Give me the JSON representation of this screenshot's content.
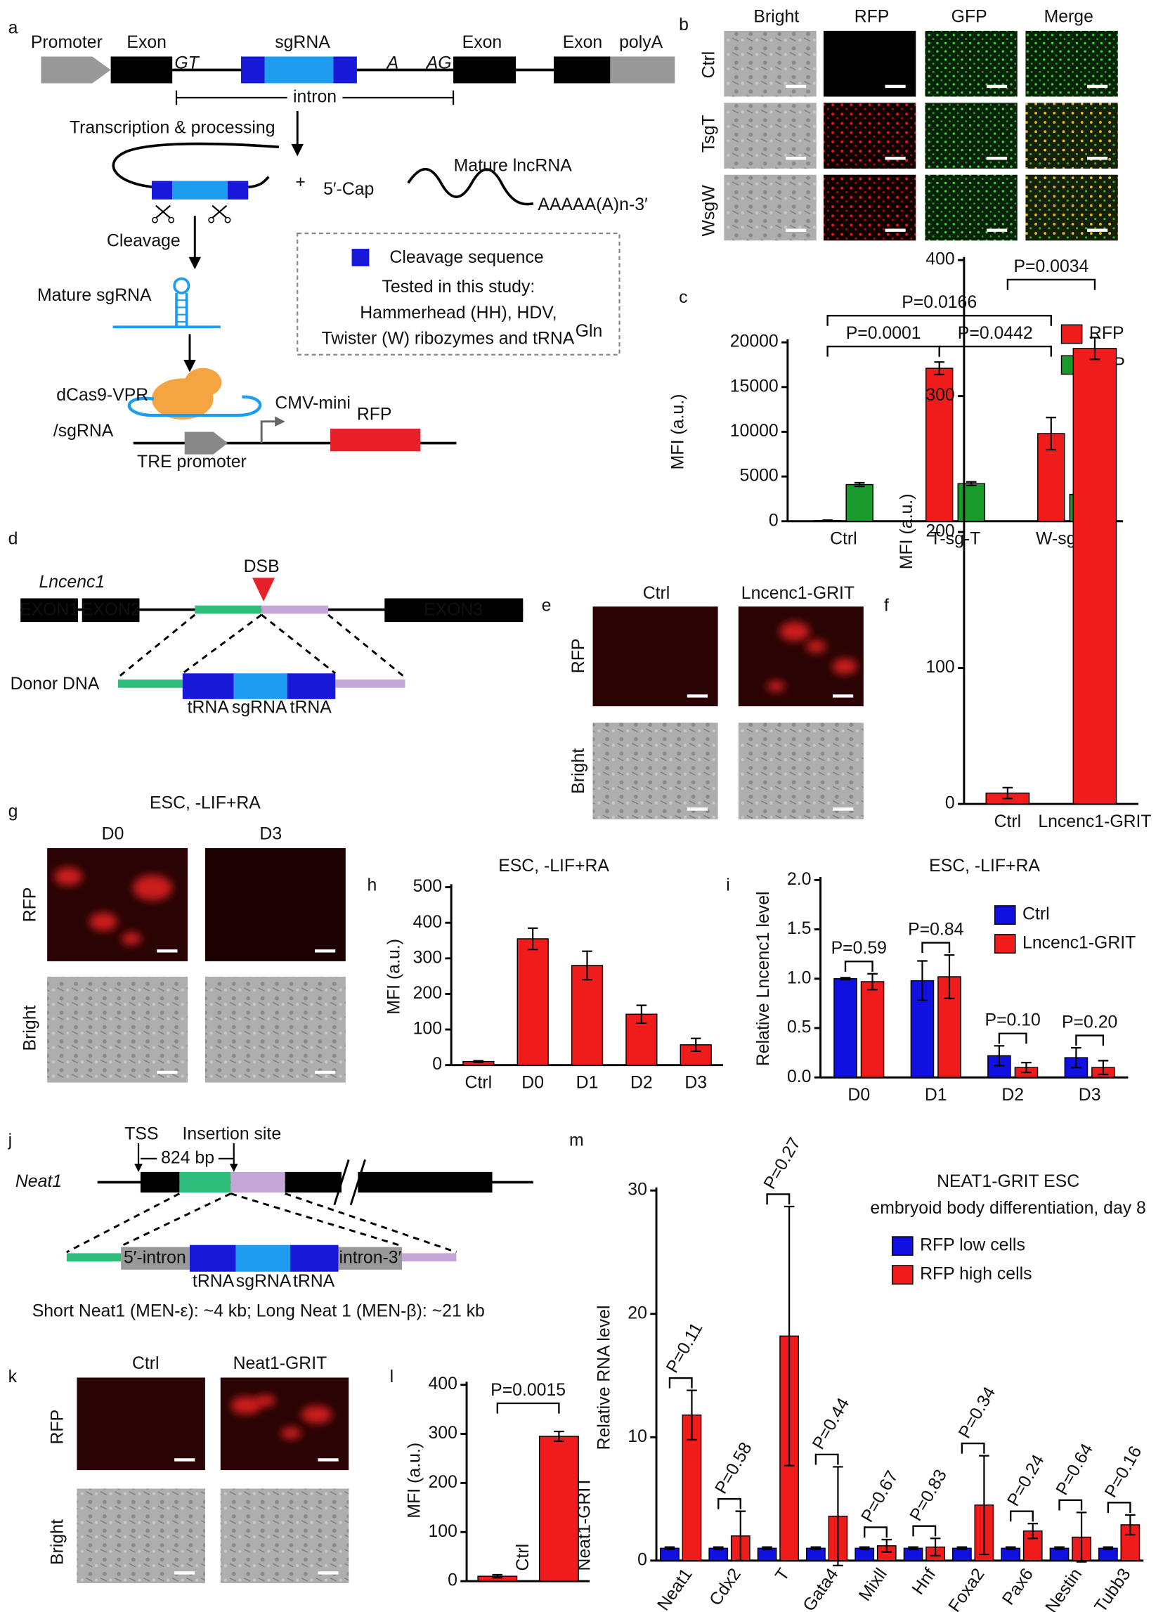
{
  "panel_labels": [
    "a",
    "b",
    "c",
    "d",
    "e",
    "f",
    "g",
    "h",
    "i",
    "j",
    "k",
    "l",
    "m"
  ],
  "panel_a": {
    "promoter": "Promoter",
    "exon1": "Exon",
    "sgrna": "sgRNA",
    "exon2": "Exon",
    "exon3": "Exon",
    "polya": "polyA",
    "gt": "GT",
    "a": "A",
    "ag": "AG",
    "intron": "intron",
    "transcription": "Transcription & processing",
    "plus": "+",
    "cap": "5′-Cap",
    "mature_lncrna": "Mature lncRNA",
    "polya_tail": "AAAAA(A)n-3′",
    "cleavage": "Cleavage",
    "mature_sgrna": "Mature sgRNA",
    "legend_cleavage": "Cleavage sequence",
    "tested": "Tested in this study:",
    "tested_2": "Hammerhead (HH), HDV,",
    "tested_3": "Twister (W) ribozymes and tRNA",
    "tested_sup": "Gln",
    "dcas9": "dCas9-VPR",
    "sgrna_label": "/sgRNA",
    "cmv": "CMV-mini",
    "rfp": "RFP",
    "tre": "TRE promoter"
  },
  "panel_b": {
    "columns": [
      "Bright",
      "RFP",
      "GFP",
      "Merge"
    ],
    "rows": [
      "Ctrl",
      "TsgT",
      "WsgW"
    ]
  },
  "panel_d": {
    "gene": "Lncenc1",
    "exons": [
      "EXON1",
      "EXON2",
      "EXON3"
    ],
    "dsb": "DSB",
    "donor": "Donor DNA",
    "parts": [
      "tRNA",
      "sgRNA",
      "tRNA"
    ]
  },
  "panel_e": {
    "columns": [
      "Ctrl",
      "Lncenc1-GRIT"
    ],
    "rows": [
      "RFP",
      "Bright"
    ]
  },
  "panel_g": {
    "title": "ESC, -LIF+RA",
    "columns": [
      "D0",
      "D3"
    ],
    "rows": [
      "RFP",
      "Bright"
    ]
  },
  "panel_j": {
    "tss": "TSS",
    "insertion": "Insertion site",
    "distance": "824 bp",
    "gene": "Neat1",
    "parts": [
      "5′-intron",
      "tRNA",
      "sgRNA",
      "tRNA",
      "intron-3′"
    ],
    "note": "Short Neat1 (MEN-ε): ~4 kb; Long Neat 1 (MEN-β): ~21 kb"
  },
  "panel_k": {
    "columns": [
      "Ctrl",
      "Neat1-GRIT"
    ],
    "rows": [
      "RFP",
      "Bright"
    ]
  },
  "chart_data": [
    {
      "type": "bar",
      "ylabel": "MFI (a.u.)",
      "categories": [
        "Ctrl",
        "T-sg-T",
        "W-sg-W"
      ],
      "series": [
        {
          "name": "RFP",
          "color": "#f01c1c",
          "values": [
            80,
            17100,
            9800
          ],
          "errors": [
            40,
            700,
            1800
          ]
        },
        {
          "name": "GFP",
          "color": "#1a9a2a",
          "values": [
            4100,
            4200,
            3000
          ],
          "errors": [
            200,
            200,
            300
          ]
        }
      ],
      "ylim": [
        0,
        20000
      ],
      "yticks": [
        0,
        5000,
        10000,
        15000,
        20000
      ],
      "annotations": [
        "P=0.0166",
        "P=0.0001",
        "P=0.0442"
      ]
    },
    {
      "type": "bar",
      "ylabel": "MFI (a.u.)",
      "categories": [
        "Ctrl",
        "Lncenc1-GRIT"
      ],
      "values": [
        8,
        335
      ],
      "errors": [
        4,
        8
      ],
      "color": "#f01c1c",
      "ylim": [
        0,
        400
      ],
      "yticks": [
        0,
        100,
        200,
        300,
        400
      ],
      "annotations": [
        "P=0.0034"
      ]
    },
    {
      "type": "bar",
      "title": "ESC, -LIF+RA",
      "ylabel": "MFI (a.u.)",
      "categories": [
        "Ctrl",
        "D0",
        "D1",
        "D2",
        "D3"
      ],
      "values": [
        10,
        355,
        280,
        143,
        57
      ],
      "errors": [
        2,
        30,
        40,
        25,
        18
      ],
      "color": "#f01c1c",
      "ylim": [
        0,
        500
      ],
      "yticks": [
        0,
        100,
        200,
        300,
        400,
        500
      ]
    },
    {
      "type": "bar",
      "title": "ESC, -LIF+RA",
      "ylabel": "Relative Lncenc1 level",
      "categories": [
        "D0",
        "D1",
        "D2",
        "D3"
      ],
      "series": [
        {
          "name": "Ctrl",
          "color": "#1010e0",
          "values": [
            1.0,
            0.98,
            0.22,
            0.2
          ],
          "errors": [
            0.01,
            0.2,
            0.1,
            0.1
          ]
        },
        {
          "name": "Lncenc1-GRIT",
          "color": "#f01c1c",
          "values": [
            0.97,
            1.02,
            0.1,
            0.1
          ],
          "errors": [
            0.08,
            0.22,
            0.05,
            0.07
          ]
        }
      ],
      "ylim": [
        0,
        2
      ],
      "yticks": [
        {
          "value": 0,
          "label": "0.0"
        },
        0.5,
        {
          "value": 1,
          "label": "1.0"
        },
        1.5,
        {
          "value": 2,
          "label": "2.0"
        }
      ],
      "annotations": [
        "P=0.59",
        "P=0.84",
        "P=0.10",
        "P=0.20"
      ]
    },
    {
      "type": "bar",
      "ylabel": "MFI (a.u.)",
      "categories": [
        "Ctrl",
        "Neat1-GRIT"
      ],
      "values": [
        10,
        295
      ],
      "errors": [
        3,
        10
      ],
      "color": "#f01c1c",
      "ylim": [
        0,
        400
      ],
      "yticks": [
        0,
        100,
        200,
        300,
        400
      ],
      "annotations": [
        "P=0.0015"
      ]
    },
    {
      "type": "bar",
      "title": [
        "NEAT1-GRIT ESC",
        "embryoid body differentiation, day 8"
      ],
      "ylabel": "Relative RNA level",
      "categories": [
        "Neat1",
        "Cdx2",
        "T",
        "Gata4",
        "Mixll",
        "Hnf",
        "Foxa2",
        "Pax6",
        "Nestin",
        "Tubb3"
      ],
      "series": [
        {
          "name": "RFP low cells",
          "color": "#1010e0",
          "values": [
            1,
            1,
            1,
            1,
            1,
            1,
            1,
            1,
            1,
            1
          ],
          "errors": [
            0.1,
            0.1,
            0.1,
            0.1,
            0.1,
            0.1,
            0.1,
            0.1,
            0.1,
            0.1
          ]
        },
        {
          "name": "RFP high cells",
          "color": "#f01c1c",
          "values": [
            11.8,
            2.0,
            18.2,
            3.6,
            1.2,
            1.1,
            4.5,
            2.4,
            1.9,
            2.9
          ],
          "errors": [
            2,
            2,
            10.5,
            4,
            0.5,
            0.7,
            4,
            0.6,
            2,
            0.8
          ]
        }
      ],
      "ylim": [
        0,
        30
      ],
      "yticks": [
        0,
        10,
        20,
        30
      ],
      "annotations": [
        "P=0.11",
        "P=0.58",
        "P=0.27",
        "P=0.44",
        "P=0.67",
        "P=0.83",
        "P=0.34",
        "P=0.24",
        "P=0.64",
        "P=0.16"
      ]
    }
  ]
}
